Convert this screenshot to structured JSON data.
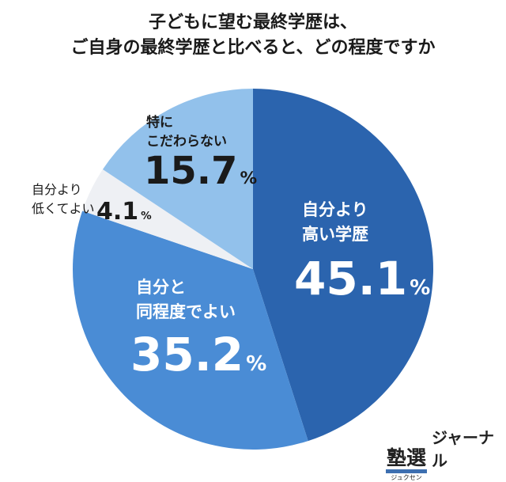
{
  "title_lines": [
    "子どもに望む最終学歴は、",
    "ご自身の最終学歴と比べると、どの程度ですか"
  ],
  "chart_data": {
    "type": "pie",
    "title": "子どもに望む最終学歴は、ご自身の最終学歴と比べると、どの程度ですか",
    "start": "top, clockwise",
    "slices": [
      {
        "label_lines": [
          "自分より",
          "高い学歴"
        ],
        "value": 45.1,
        "color": "#2b64ae"
      },
      {
        "label_lines": [
          "自分と",
          "同程度でよい"
        ],
        "value": 35.2,
        "color": "#4a8cd5"
      },
      {
        "label_lines": [
          "自分より",
          "低くてよい"
        ],
        "value": 4.1,
        "color": "#eef0f4"
      },
      {
        "label_lines": [
          "特に",
          "こだわらない"
        ],
        "value": 15.7,
        "color": "#92c1eb"
      }
    ],
    "value_text": [
      "45.1",
      "35.2",
      "4.1",
      "15.7"
    ],
    "unit": "%"
  },
  "logo": {
    "main": "塾選",
    "kana": "ジュクセン",
    "suffix": "ジャーナル",
    "color": "#3d6fb0"
  }
}
